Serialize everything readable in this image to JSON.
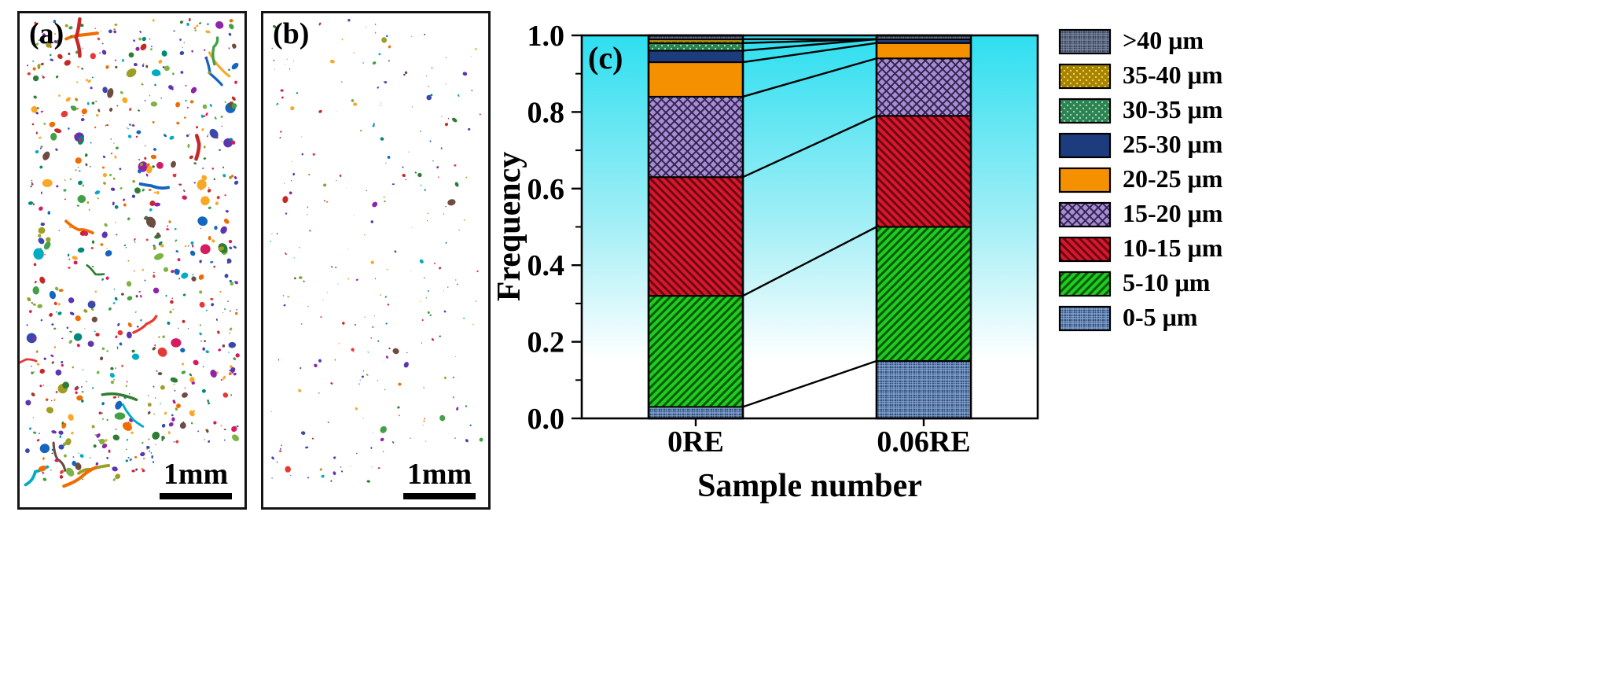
{
  "panels": {
    "a": {
      "label": "(a)",
      "scalebar_text": "1mm",
      "particle_count": 780,
      "seed": 42,
      "worms": true,
      "size_scale": 1.0
    },
    "b": {
      "label": "(b)",
      "scalebar_text": "1mm",
      "particle_count": 270,
      "seed": 7,
      "worms": false,
      "size_scale": 0.62
    },
    "palette": [
      "#c62828",
      "#2e7d32",
      "#1565c0",
      "#ef6c00",
      "#8e24aa",
      "#00897b",
      "#9e9d24",
      "#d81b60",
      "#5e35b1",
      "#00acc1",
      "#f9a825",
      "#43a047",
      "#e53935",
      "#3949ab",
      "#7cb342",
      "#6d4c41"
    ]
  },
  "chart_data": {
    "type": "bar",
    "stacked": true,
    "panel_label": "(c)",
    "xlabel": "Sample number",
    "ylabel": "Frequency",
    "ylim": [
      0.0,
      1.0
    ],
    "yticks": [
      0.0,
      0.2,
      0.4,
      0.6,
      0.8,
      1.0
    ],
    "categories": [
      "0RE",
      "0.06RE"
    ],
    "series": [
      {
        "name": "0-5 μm",
        "values": [
          0.03,
          0.15
        ],
        "pattern": "grid",
        "color": "#33507E",
        "accent": "#9FC0E8"
      },
      {
        "name": "5-10 μm",
        "values": [
          0.29,
          0.35
        ],
        "pattern": "diag-up",
        "color": "#1FCC1F",
        "accent": "#0A5A0A"
      },
      {
        "name": "10-15 μm",
        "values": [
          0.31,
          0.29
        ],
        "pattern": "diag-down",
        "color": "#D8172B",
        "accent": "#6B0715"
      },
      {
        "name": "15-20 μm",
        "values": [
          0.21,
          0.15
        ],
        "pattern": "cross",
        "color": "#A88CD6",
        "accent": "#32254D"
      },
      {
        "name": "20-25 μm",
        "values": [
          0.09,
          0.04
        ],
        "pattern": "solid",
        "color": "#F59000",
        "accent": "#B36800"
      },
      {
        "name": "25-30 μm",
        "values": [
          0.03,
          0.01
        ],
        "pattern": "solid",
        "color": "#1C3C7E",
        "accent": "#122A5C"
      },
      {
        "name": "30-35 μm",
        "values": [
          0.02,
          0.0
        ],
        "pattern": "dots",
        "color": "#2F8153",
        "accent": "#8FE0AC"
      },
      {
        "name": "35-40 μm",
        "values": [
          0.01,
          0.0
        ],
        "pattern": "dots",
        "color": "#A68400",
        "accent": "#F0D060"
      },
      {
        "name": ">40 μm",
        "values": [
          0.01,
          0.01
        ],
        "pattern": "grid",
        "color": "#39455C",
        "accent": "#8E9BB4"
      }
    ],
    "legend_position": "right",
    "background_gradient": [
      "#2EDFF0",
      "#A5EFF6",
      "#FFFFFF"
    ],
    "bar_border_color": "#000000"
  }
}
